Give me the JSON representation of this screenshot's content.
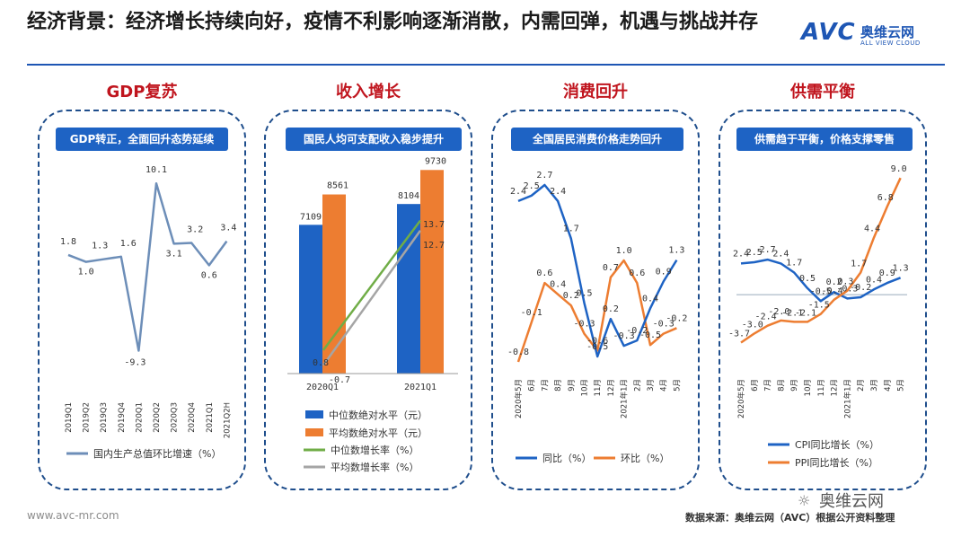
{
  "header": {
    "title": "经济背景：经济增长持续向好，疫情不利影响逐渐消散，内需回弹，机遇与挑战并存",
    "logo_main": "AVC",
    "logo_cn": "奥维云网",
    "logo_sub": "ALL VIEW CLOUD"
  },
  "sections": [
    {
      "title": "GDP复苏",
      "subtitle": "GDP转正，全面回升态势延续"
    },
    {
      "title": "收入增长",
      "subtitle": "国民人均可支配收入稳步提升"
    },
    {
      "title": "消费回升",
      "subtitle": "全国居民消费价格走势回升"
    },
    {
      "title": "供需平衡",
      "subtitle": "供需趋于平衡，价格支撑零售"
    }
  ],
  "chart_data": [
    {
      "type": "line",
      "categories": [
        "2019Q1",
        "2019Q2",
        "2019Q3",
        "2019Q4",
        "2020Q1",
        "2020Q2",
        "2020Q3",
        "2020Q4",
        "2021Q1",
        "2021Q2H"
      ],
      "series": [
        {
          "name": "国内生产总值环比增速（%）",
          "values": [
            1.8,
            1.0,
            1.3,
            1.6,
            -9.3,
            10.1,
            3.1,
            3.2,
            0.6,
            3.4
          ],
          "labels": [
            "1.8",
            "1.0",
            "1.3",
            "1.6",
            "-9.3",
            "10.1",
            "3.1",
            "3.2",
            "0.6",
            "3.4"
          ]
        }
      ],
      "color": "#6d8eb8",
      "ylim": [
        -10.5,
        12
      ]
    },
    {
      "type": "bar",
      "categories": [
        "2020Q1",
        "2021Q1"
      ],
      "series": [
        {
          "name": "中位数绝对水平（元）",
          "values": [
            7109,
            8104
          ],
          "labels": [
            "7109",
            "8104"
          ],
          "color": "#1e63c4"
        },
        {
          "name": "平均数绝对水平（元）",
          "values": [
            8561,
            9730
          ],
          "labels": [
            "8561",
            "9730"
          ],
          "color": "#ed7d31"
        },
        {
          "name": "中位数增长率（%）",
          "values": [
            0.8,
            13.7
          ],
          "labels": [
            "0.8",
            "13.7"
          ],
          "color": "#70ad47"
        },
        {
          "name": "平均数增长率（%）",
          "values": [
            -0.7,
            12.7
          ],
          "labels": [
            "-0.7",
            "12.7"
          ],
          "color": "#a5a5a5"
        }
      ]
    },
    {
      "type": "line",
      "categories": [
        "2020年5月",
        "6月",
        "7月",
        "8月",
        "9月",
        "10月",
        "11月",
        "12月",
        "2021年1月",
        "2月",
        "3月",
        "4月",
        "5月"
      ],
      "series": [
        {
          "name": "同比（%）",
          "values": [
            2.4,
            2.5,
            2.7,
            2.4,
            1.7,
            0.5,
            -0.5,
            0.2,
            -0.3,
            -0.2,
            0.4,
            0.9,
            1.3
          ],
          "labels": [
            "2.4",
            "2.5",
            "2.7",
            "2.4",
            "1.7",
            "0.5",
            "-0.5",
            "0.2",
            "-0.3",
            "-0.2",
            "0.4",
            "0.9",
            "1.3"
          ],
          "color": "#1e63c4"
        },
        {
          "name": "环比（%）",
          "values": [
            -0.8,
            -0.1,
            0.6,
            0.4,
            0.2,
            -0.3,
            -0.6,
            0.7,
            1.0,
            0.6,
            -0.5,
            -0.3,
            -0.2
          ],
          "labels": [
            "-0.8",
            "-0.1",
            "0.6",
            "0.4",
            "0.2",
            "-0.3",
            "-0.6",
            "0.7",
            "1.0",
            "0.6",
            "-0.5",
            "-0.3",
            "-0.2"
          ],
          "color": "#ed7d31"
        }
      ]
    },
    {
      "type": "line",
      "categories": [
        "2020年5月",
        "6月",
        "7月",
        "8月",
        "9月",
        "10月",
        "11月",
        "12月",
        "2021年1月",
        "2月",
        "3月",
        "4月",
        "5月"
      ],
      "series": [
        {
          "name": "CPI同比增长（%）",
          "values": [
            2.4,
            2.5,
            2.7,
            2.4,
            1.7,
            0.5,
            -0.5,
            0.2,
            -0.3,
            -0.2,
            0.4,
            0.9,
            1.3
          ],
          "labels": [
            "2.4",
            "2.5",
            "2.7",
            "2.4",
            "1.7",
            "0.5",
            "-0.5",
            "0.2",
            "-0.3",
            "-0.2",
            "0.4",
            "0.9",
            "1.3"
          ],
          "color": "#1e63c4"
        },
        {
          "name": "PPI同比增长（%）",
          "values": [
            -3.7,
            -3.0,
            -2.4,
            -2.0,
            -2.1,
            -2.1,
            -1.5,
            -0.4,
            0.3,
            1.7,
            4.4,
            6.8,
            9.0
          ],
          "labels": [
            "-3.7",
            "-3.0",
            "-2.4",
            "-2.0",
            "-2.1",
            "-2.1",
            "-1.5",
            "-0.4",
            "0.3",
            "1.7",
            "4.4",
            "6.8",
            "9.0"
          ],
          "color": "#ed7d31"
        }
      ],
      "ylim": [
        -4.5,
        9.5
      ]
    }
  ],
  "footer": {
    "website": "www.avc-mr.com",
    "source": "数据来源：奥维云网（AVC）根据公开资料整理",
    "watermark": "奥维云网"
  }
}
